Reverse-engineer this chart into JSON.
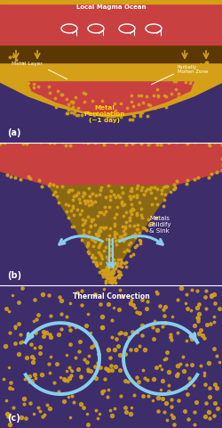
{
  "bg_color": "#3d2d6b",
  "magma_red": "#c94040",
  "metal_gold": "#d4a017",
  "metal_dark": "#8B6914",
  "arrow_blue": "#87CEEB",
  "text_white": "#ffffff",
  "text_gold": "#FFD700",
  "mantle_brown": "#5a3800",
  "panel_labels": [
    "(a)",
    "(b)",
    "(c)"
  ],
  "label_a_magma": "Local Magma Ocean",
  "label_a_metal": "Metal Layer",
  "label_a_partial": "Partially\nMolten Zone",
  "label_a_percolation": "Metal\nPercolation\n(−1 day)",
  "label_b_sink": "Metals\nSolidify\n& Sink",
  "label_c": "Thermal Convection"
}
